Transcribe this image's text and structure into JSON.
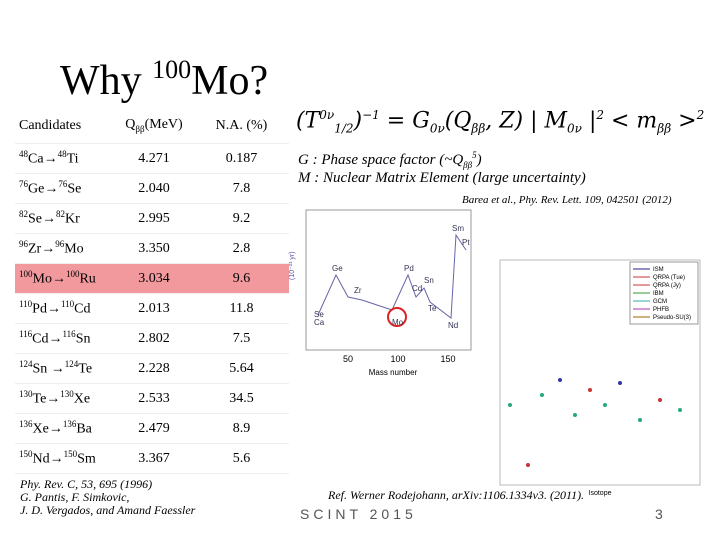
{
  "title": {
    "main": "Why ",
    "sup": "100",
    "rest": "Mo?"
  },
  "table": {
    "header": {
      "candidates": "Candidates",
      "q": "Q",
      "q_sub": "ββ",
      "q_unit": "(MeV)",
      "na": "N.A. (%)"
    },
    "rows": [
      {
        "from_mass": "48",
        "from": "Ca",
        "arrow": "→",
        "to_mass": "48",
        "to": "Ti",
        "q": "4.271",
        "na": "0.187"
      },
      {
        "from_mass": "76",
        "from": "Ge",
        "arrow": "→",
        "to_mass": "76",
        "to": "Se",
        "q": "2.040",
        "na": "7.8"
      },
      {
        "from_mass": "82",
        "from": "Se",
        "arrow": "→",
        "to_mass": "82",
        "to": "Kr",
        "q": "2.995",
        "na": "9.2"
      },
      {
        "from_mass": "96",
        "from": "Zr",
        "arrow": "→",
        "to_mass": "96",
        "to": "Mo",
        "q": "3.350",
        "na": "2.8"
      },
      {
        "from_mass": "100",
        "from": "Mo",
        "arrow": "→",
        "to_mass": "100",
        "to": "Ru",
        "q": "3.034",
        "na": "9.6"
      },
      {
        "from_mass": "110",
        "from": "Pd",
        "arrow": "→",
        "to_mass": "110",
        "to": "Cd",
        "q": "2.013",
        "na": "11.8"
      },
      {
        "from_mass": "116",
        "from": "Cd",
        "arrow": "→",
        "to_mass": "116",
        "to": "Sn",
        "q": "2.802",
        "na": "7.5"
      },
      {
        "from_mass": "124",
        "from": "Sn",
        "arrow": " →",
        "to_mass": "124",
        "to": "Te",
        "q": "2.228",
        "na": "5.64"
      },
      {
        "from_mass": "130",
        "from": "Te",
        "arrow": "→",
        "to_mass": "130",
        "to": "Xe",
        "q": "2.533",
        "na": "34.5"
      },
      {
        "from_mass": "136",
        "from": "Xe",
        "arrow": "→",
        "to_mass": "136",
        "to": "Ba",
        "q": "2.479",
        "na": "8.9"
      },
      {
        "from_mass": "150",
        "from": "Nd",
        "arrow": "→",
        "to_mass": "150",
        "to": "Sm",
        "q": "3.367",
        "na": "5.6"
      }
    ],
    "highlight_row": 4
  },
  "formula": {
    "lhs": "(T",
    "lhs_sup": "0ν",
    "lhs_sub": "1/2",
    "lhs_pow": ")",
    "lhs_exp": "−1",
    "eq": " = G",
    "g_sub": "0ν",
    "args": "(Q",
    "q_sub": "ββ",
    "args2": ", Z) | M",
    "m_sub": "0ν",
    "bar": " |",
    "m_exp": "2",
    "mass": " < m",
    "mass_sub": "ββ",
    "mass_close": " >",
    "mass_exp": "2"
  },
  "notes": {
    "g_line": "G : Phase space factor (~Q",
    "g_sub": "ββ",
    "g_sup": "5",
    "g_close": ")",
    "m_line": "M : Nuclear Matrix Element (large uncertainty)",
    "barea": "Barea et al., Phy. Rev. Lett. 109, 042501 (2012)"
  },
  "figure1": {
    "elements": [
      "Ca",
      "Ge",
      "Se",
      "Zr",
      "Mo",
      "Pd",
      "Cd",
      "Sn",
      "Te",
      "Nd",
      "Sm",
      "Pt"
    ],
    "xticks": [
      "50",
      "100",
      "150"
    ],
    "xlabel": "Mass number"
  },
  "figure2": {
    "legend": [
      "ISM",
      "QRPA (Tue)",
      "QRPA (Jy)",
      "IBM",
      "GCM",
      "PHFB",
      "Pseudo-SU(3)"
    ],
    "xlabel": "Isotope"
  },
  "refs": {
    "left": [
      "Phy. Rev. C, 53, 695 (1996)",
      "G. Pantis, F. Simkovic,",
      "J. D. Vergados, and Amand Faessler"
    ],
    "right": "Ref. Werner Rodejohann, arXiv:1106.1334v3. (2011)."
  },
  "footer": {
    "event": "SCINT 2015",
    "page": "3"
  }
}
